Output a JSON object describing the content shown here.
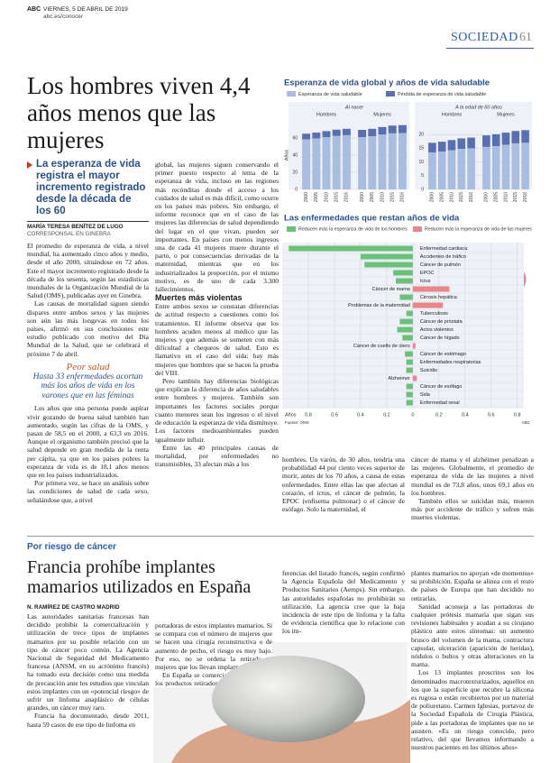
{
  "header": {
    "brand": "ABC",
    "date": "VIERNES, 5 DE ABRIL DE 2019",
    "web": "abc.es/conocer",
    "section": "SOCIEDAD",
    "page": "61"
  },
  "article1": {
    "headline": "Los hombres viven 4,4 años menos que las mujeres",
    "subhead": "La esperanza de vida registra el mayor incremento registrado desde la década de los 60",
    "byline": "MARÍA TERESA BENÍTEZ DE LUGO",
    "role": "CORRESPONSAL EN GINEBRA",
    "col1": [
      "El promedio de esperanza de vida, a nivel mundial, ha aumentado cinco años y medio, desde el año 2000, situándose en 72 años. Este el mayor incremento registrado desde la década de los sesenta, según las estadísticas mundiales de la Organización Mundial de la Salud (OMS), publicadas ayer en Ginebra.",
      "Las causas de mortalidad siguen siendo dispares entre ambos sexos y las mujeres son aún las más longevas en todos los países, afirmó en sus conclusiones este estudio publicado con motivo del Día Mundial de la Salud, que se celebrará el próximo 7 de abril.",
      "Los años que una persona puede aspirar vivir gozando de buena salud también han aumentado, según las cifras de la OMS, y pasan de 58,5 en el 2000, a 63,3 en 2016. Aunque el organismo también precisó que la salud depende en gran medida de la renta per cápita, ya que en los países pobres la esperanza de vida es de 18,1 años menos que en los países industrializados.",
      "Por primera vez, se hace un análisis sobre las condiciones de salud de cada sexo, señalándose que, a nivel"
    ],
    "pullquote": {
      "kicker": "Peor salud",
      "text": "Hasta 33 enfermedades acortan más los años de vida en los varones que en las féminas"
    },
    "col2": [
      "global, las mujeres siguen conservando el primer puesto respecto al tema de la esperanza de vida, incluso en las regiones más recónditas donde el acceso a los cuidados de salud es más difícil, como ocurre en los países más pobres. Sin embargo, el informe reconoce que en el caso de las mujeres las diferencias de salud dependiendo del lugar en el que vivan, pueden ser importantes. En países con menos ingresos una de cada 41 mujeres muere durante el parto, o por consecuencias derivadas de la maternidad, mientras que en los industrializados la proporción, por el mismo motivo, es de uno de cada 3.300 fallecimientos."
    ],
    "subheading": "Muertes más violentas",
    "col2b": [
      "Entre ambos sexos se constatan diferencias de actitud respecto a cuestiones como los tratamientos. El informe observa que los hombres acuden menos al médico que las mujeres y que además se someten con más dificultad a chequeos de salud. Esto es llamativo en el caso del sida: hay más mujeres que hombres que se hacen la prueba del VIH.",
      "Pero también hay diferencias biológicas que explican la diferencia de años saludables entre hombres y mujeres. También son importantes los factores sociales porque cuanto menores sean los ingresos o el nivel de educación la esperanza de vida disminuye. Los factores medioambientales pueden igualmente influir.",
      "Entre las 40 principales causas de mortalidad, por enfermedades no transmisibles, 33 afectan más a los"
    ],
    "col3": [
      "hombres. Un varón, de 30 años, tendría una probabilidad 44 por ciento veces superior de morir, antes de los 70 años, a causa de estas enfermedades. Entre ellas las que afectan al corazón, el ictus, el cáncer de pulmón, la EPOC (enfisema pulmonar) o el cáncer de esófago. Solo la maternidad, el"
    ],
    "col4": [
      "cáncer de mama y el alzhéimer penalizan a las mujeres. Globalmente, el promedio de esperanza de vida de las mujeres a nivel mundial es de 73,8 años, unos 69,1 años en los hombres.",
      "También ellos se suicidan más, mueren más por accidente de tráfico y sufren más muertes violentas."
    ]
  },
  "infographic": {
    "life": {
      "type": "bar",
      "stacked": true,
      "title": "Esperanza de vida global y años de vida saludable",
      "series": [
        {
          "name": "Esperanza de vida saludable",
          "color": "#a9bde0"
        },
        {
          "name": "Pérdida de esperanza de vida saludable",
          "color": "#5a6fb0"
        }
      ],
      "ylabel": "Años",
      "panels": [
        {
          "title": "Al nacer",
          "ylim": [
            0,
            80
          ],
          "yticks": [
            0,
            20,
            40,
            60
          ],
          "groups": [
            {
              "name": "Hombres",
              "categories": [
                "2000",
                "2005",
                "2010",
                "2015",
                "2016"
              ],
              "series": [
                {
                  "values": [
                    58.5,
                    59.5,
                    61,
                    62.5,
                    63.3
                  ]
                },
                {
                  "values": [
                    6.5,
                    6.8,
                    7,
                    7.2,
                    7.4
                  ]
                }
              ]
            },
            {
              "name": "Mujeres",
              "categories": [
                "2000",
                "2005",
                "2010",
                "2015",
                "2016"
              ],
              "series": [
                {
                  "values": [
                    61,
                    62,
                    64,
                    65.5,
                    65.8
                  ]
                },
                {
                  "values": [
                    8.5,
                    8.7,
                    8.8,
                    9,
                    9.2
                  ]
                }
              ]
            }
          ]
        },
        {
          "title": "A la edad de 60 años",
          "ylim": [
            0,
            25
          ],
          "yticks": [
            0,
            5,
            10,
            15,
            20
          ],
          "groups": [
            {
              "name": "Hombres",
              "categories": [
                "2000",
                "2005",
                "2010",
                "2015",
                "2016"
              ],
              "series": [
                {
                  "values": [
                    13.5,
                    13.8,
                    14.3,
                    14.8,
                    15
                  ]
                },
                {
                  "values": [
                    3.5,
                    3.6,
                    3.7,
                    3.8,
                    3.9
                  ]
                }
              ]
            },
            {
              "name": "Mujeres",
              "categories": [
                "2000",
                "2005",
                "2010",
                "2015",
                "2016"
              ],
              "series": [
                {
                  "values": [
                    15.5,
                    15.8,
                    16.3,
                    16.8,
                    17
                  ]
                },
                {
                  "values": [
                    4.2,
                    4.3,
                    4.4,
                    4.5,
                    4.6
                  ]
                }
              ]
            }
          ]
        }
      ]
    },
    "diseases": {
      "type": "bar",
      "orientation": "horizontal",
      "title": "Las enfermedades que restan años de vida",
      "legend": [
        {
          "name": "Reducen más la esperanza de vida de los hombres",
          "color": "#6cc07a"
        },
        {
          "name": "Reducen más la esperanza de vida de las mujeres",
          "color": "#e8868a"
        }
      ],
      "categories": [
        "Enfermedad cardiaca",
        "Accidentes de tráfico",
        "Cáncer de pulmón",
        "EPOC",
        "Ictus",
        "Cáncer de mama",
        "Cirrosis hepática",
        "Problemas de la maternidad",
        "Tuberculosis",
        "Cáncer de próstata",
        "Actos violentos",
        "Cáncer de hígado",
        "Cáncer de cuello de útero",
        "Cáncer de estómago",
        "Enfermedades respiratorias",
        "Suicidio",
        "Alzheimer",
        "Cáncer de esófago",
        "Sida",
        "Enfermedad renal"
      ],
      "values": [
        -0.95,
        -0.4,
        -0.37,
        -0.15,
        -0.13,
        0.28,
        -0.1,
        0.23,
        -0.05,
        -0.1,
        -0.12,
        -0.08,
        0.02,
        -0.06,
        -0.05,
        -0.05,
        0.03,
        -0.05,
        -0.05,
        -0.05
      ],
      "xlabel": "Años",
      "xlim": [
        -1,
        0.85
      ],
      "xticks": [
        {
          "value": -0.8,
          "label": "0.8"
        },
        {
          "value": -0.6,
          "label": "0.6"
        },
        {
          "value": -0.4,
          "label": "0.4"
        },
        {
          "value": -0.2,
          "label": "0.2"
        },
        0,
        0.2,
        0.4,
        0.6,
        0.8
      ]
    },
    "source": "Fuente: OMS",
    "credit": "ABC"
  },
  "article2": {
    "kicker": "Por riesgo de cáncer",
    "headline": "Francia prohíbe implantes mamarios utilizados en España",
    "byline": "N. RAMÍREZ DE CASTRO MADRID",
    "col1": [
      "Las autoridades sanitarias francesas han decidido prohibir la comercialización y utilización de trece tipos de implantes mamarios por su posible relación con un tipo de cáncer poco común. La Agencia Nacional de Seguridad del Medicamento francesa (ANSM, en su acrónimo francés) ha tomado esta decisión como una medida de precaución ante los estudios que vinculan estos implantes con un «potencial riesgo» de sufrir un linfoma anaplásico de células grandes, un cáncer muy raro.",
      "Francia ha documentado, desde 2011, hasta 59 casos de ese tipo de linfoma en"
    ],
    "col2": [
      "portadoras de estos implantes mamarios. Si se compara con el número de mujeres que se hacen una cirugía reconstructiva o de aumento de pecho, el riesgo es muy bajo. Por eso, no se ordena la retirada en mujeres que los llevan implantados.",
      "En España se comercializan algunos de los productos retirados en Francia, aunque no se utilizan todas las re-"
    ],
    "col3": [
      "ferencias del listado francés, según confirmó la Agencia Española del Medicamento y Productos Sanitarios (Aemps). Sin embargo, las autoridades españolas no prohibirán su utilización. La agencia cree que la baja incidencia de este tipo de linfoma y la falta de evidencia científica que lo relacione con los im-"
    ],
    "col4": [
      "plantes mamarios no apoyan «de momentos» su prohibición. España se alinea con el resto de países de Europa que han decidido no retirarlas.",
      "Sanidad aconseja a las portadoras de cualquier prótesis mamaria que sigan sus revisiones habituales y acudan a su cirujano plástico ante estos síntomas: un aumento brusco del volumen de la mama, contractura capsular, ulceración (aparición de heridas), nódulos o bultos y otras alteraciones en la mama.",
      "Los 13 implantes proscritos son los denominados macrotexturizados, aquellos en los que la superficie que recubre la silicona es rugosa o están recubiertos por un material de poliuretano. Carmen Iglesias, portavoz de la Sociedad Española de Cirugía Plástica, pide a las portadoras de implantes que no se asusten. «Es un riesgo conocido, pero relativo, del que llevamos informando a nuestros pacientes en los últimos años»"
    ]
  }
}
